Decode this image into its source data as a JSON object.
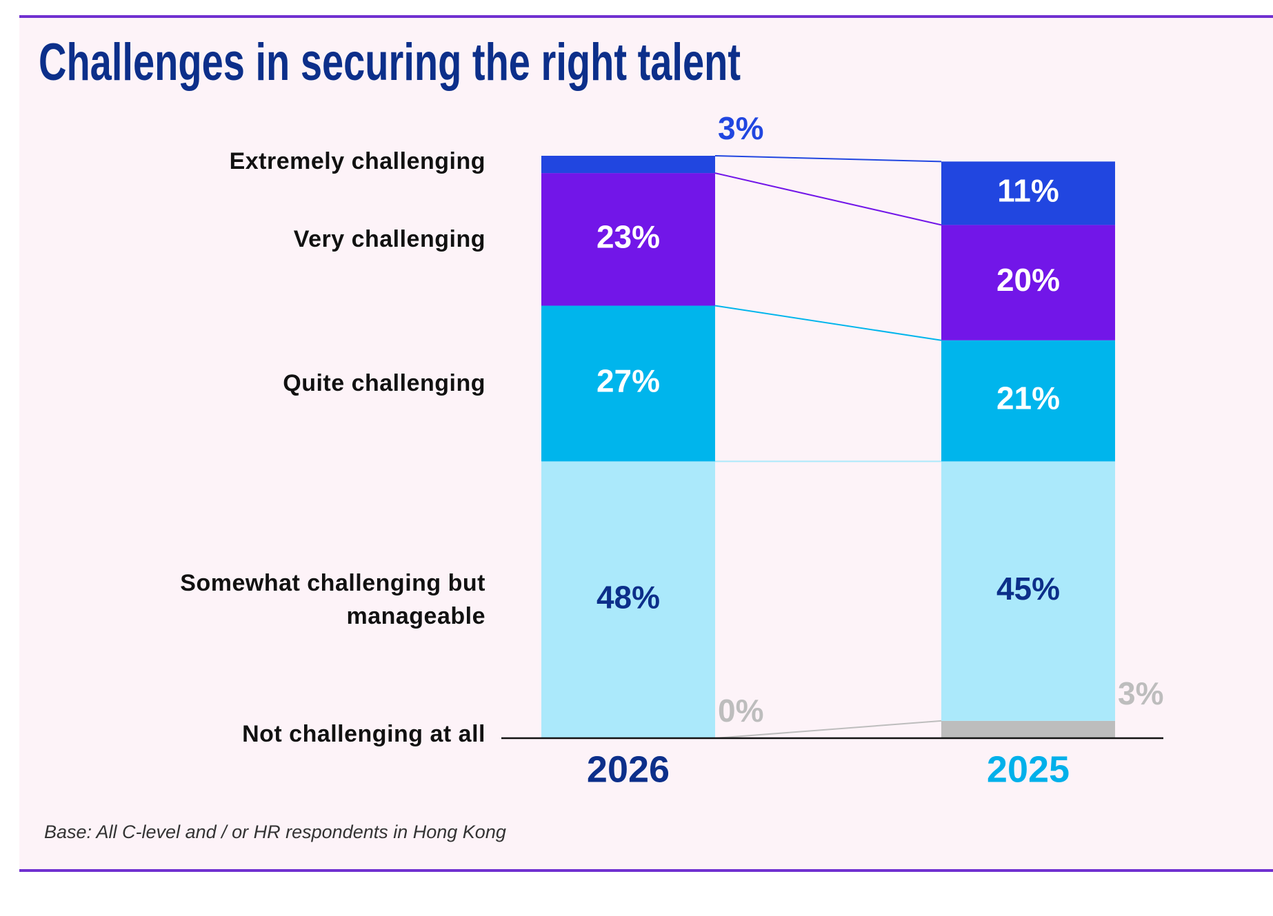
{
  "chart_data": {
    "type": "stacked-bar",
    "title": "Challenges in securing the right talent",
    "footnote": "Base: All C-level and / or HR respondents in Hong Kong",
    "categories": [
      "2026",
      "2025"
    ],
    "category_colors": [
      "#0c2f8a",
      "#00b0ea"
    ],
    "ylim": [
      0,
      101
    ],
    "series": [
      {
        "name": "Not challenging at all",
        "color": "#bdbdbd",
        "label_color": "#a6a6a6",
        "values": [
          0,
          3
        ],
        "value_labels": [
          "0%",
          "3%"
        ]
      },
      {
        "name": "Somewhat challenging but manageable",
        "color": "#abe9fb",
        "label_color": "#0c2f8a",
        "values": [
          48,
          45
        ],
        "value_labels": [
          "48%",
          "45%"
        ]
      },
      {
        "name": "Quite challenging",
        "color": "#00b5ec",
        "label_color": "#ffffff",
        "values": [
          27,
          21
        ],
        "value_labels": [
          "27%",
          "21%"
        ]
      },
      {
        "name": "Very challenging",
        "color": "#7216e8",
        "label_color": "#ffffff",
        "values": [
          23,
          20
        ],
        "value_labels": [
          "23%",
          "20%"
        ]
      },
      {
        "name": "Extremely challenging",
        "color": "#2146e0",
        "label_color": "#ffffff",
        "values": [
          3,
          11
        ],
        "value_labels": [
          "3%",
          "11%"
        ]
      }
    ]
  }
}
